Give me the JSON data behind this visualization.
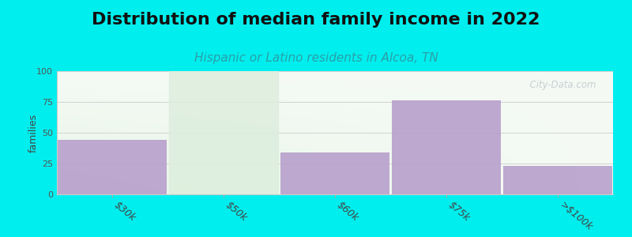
{
  "title": "Distribution of median family income in 2022",
  "subtitle": "Hispanic or Latino residents in Alcoa, TN",
  "categories": [
    "$30k",
    "$50k",
    "$60k",
    "$75k",
    ">$100k"
  ],
  "values": [
    44,
    0,
    34,
    76,
    23
  ],
  "bar_color": "#b8a0cc",
  "empty_col_color": "#ddeedd",
  "background_color": "#00eeee",
  "plot_bg_color": "#f0f8f0",
  "ylabel": "families",
  "ylim": [
    0,
    100
  ],
  "yticks": [
    0,
    25,
    50,
    75,
    100
  ],
  "title_fontsize": 16,
  "subtitle_fontsize": 11,
  "subtitle_color": "#2aa0a8",
  "watermark": "  City-Data.com",
  "watermark_color": "#c0c8cc"
}
